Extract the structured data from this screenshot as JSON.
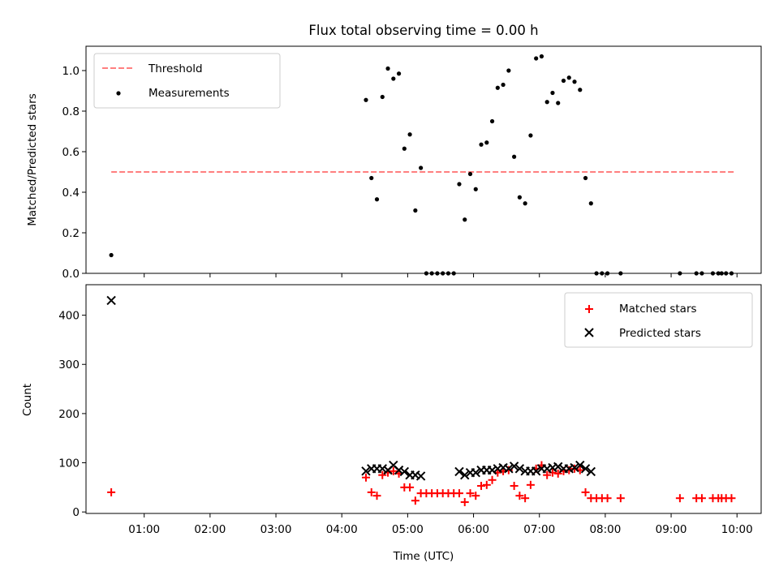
{
  "chart_data": [
    {
      "type": "scatter",
      "title": "Flux total observing time = 0.00 h",
      "ylabel": "Matched/Predicted stars",
      "xlabel": "",
      "xlim": [
        "00:07",
        "10:22"
      ],
      "ylim": [
        0,
        1.12
      ],
      "yticks": [
        0.0,
        0.2,
        0.4,
        0.6,
        0.8,
        1.0
      ],
      "ytick_labels": [
        "0.0",
        "0.2",
        "0.4",
        "0.6",
        "0.8",
        "1.0"
      ],
      "legend_position": "top-left",
      "grid": false,
      "threshold": {
        "name": "Threshold",
        "value": 0.5,
        "x_range": [
          "00:30",
          "09:58"
        ],
        "color": "#ff7f7f",
        "style": "dashed"
      },
      "series": [
        {
          "name": "Measurements",
          "color": "#000000",
          "marker": "dot",
          "points": [
            [
              "00:30",
              0.09
            ],
            [
              "04:22",
              0.855
            ],
            [
              "04:27",
              0.47
            ],
            [
              "04:32",
              0.365
            ],
            [
              "04:37",
              0.87
            ],
            [
              "04:42",
              1.01
            ],
            [
              "04:47",
              0.96
            ],
            [
              "04:52",
              0.985
            ],
            [
              "04:57",
              0.615
            ],
            [
              "05:02",
              0.685
            ],
            [
              "05:07",
              0.31
            ],
            [
              "05:12",
              0.52
            ],
            [
              "05:17",
              0.0
            ],
            [
              "05:22",
              0.0
            ],
            [
              "05:27",
              0.0
            ],
            [
              "05:32",
              0.0
            ],
            [
              "05:37",
              0.0
            ],
            [
              "05:42",
              0.0
            ],
            [
              "05:47",
              0.44
            ],
            [
              "05:52",
              0.265
            ],
            [
              "05:57",
              0.49
            ],
            [
              "06:02",
              0.415
            ],
            [
              "06:07",
              0.635
            ],
            [
              "06:12",
              0.645
            ],
            [
              "06:17",
              0.75
            ],
            [
              "06:22",
              0.915
            ],
            [
              "06:27",
              0.93
            ],
            [
              "06:32",
              1.0
            ],
            [
              "06:37",
              0.575
            ],
            [
              "06:42",
              0.375
            ],
            [
              "06:47",
              0.345
            ],
            [
              "06:52",
              0.68
            ],
            [
              "06:57",
              1.06
            ],
            [
              "07:02",
              1.07
            ],
            [
              "07:07",
              0.845
            ],
            [
              "07:12",
              0.89
            ],
            [
              "07:17",
              0.84
            ],
            [
              "07:22",
              0.95
            ],
            [
              "07:27",
              0.965
            ],
            [
              "07:32",
              0.945
            ],
            [
              "07:37",
              0.905
            ],
            [
              "07:42",
              0.47
            ],
            [
              "07:47",
              0.345
            ],
            [
              "07:52",
              0.0
            ],
            [
              "07:57",
              0.0
            ],
            [
              "08:02",
              0.0
            ],
            [
              "08:14",
              0.0
            ],
            [
              "09:08",
              0.0
            ],
            [
              "09:23",
              0.0
            ],
            [
              "09:28",
              0.0
            ],
            [
              "09:38",
              0.0
            ],
            [
              "09:43",
              0.0
            ],
            [
              "09:46",
              0.0
            ],
            [
              "09:50",
              0.0
            ],
            [
              "09:55",
              0.0
            ]
          ]
        }
      ]
    },
    {
      "type": "scatter",
      "title": "",
      "ylabel": "Count",
      "xlabel": "Time (UTC)",
      "xlim": [
        "00:07",
        "10:22"
      ],
      "ylim": [
        -3,
        462
      ],
      "yticks": [
        0,
        100,
        200,
        300,
        400
      ],
      "ytick_labels": [
        "0",
        "100",
        "200",
        "300",
        "400"
      ],
      "xticks": [
        "01:00",
        "02:00",
        "03:00",
        "04:00",
        "05:00",
        "06:00",
        "07:00",
        "08:00",
        "09:00",
        "10:00"
      ],
      "xtick_labels": [
        "01:00",
        "02:00",
        "03:00",
        "04:00",
        "05:00",
        "06:00",
        "07:00",
        "08:00",
        "09:00",
        "10:00"
      ],
      "legend_position": "top-right",
      "grid": false,
      "series": [
        {
          "name": "Matched stars",
          "color": "#ff0000",
          "marker": "plus",
          "points": [
            [
              "00:30",
              40
            ],
            [
              "04:22",
              70
            ],
            [
              "04:27",
              40
            ],
            [
              "04:32",
              33
            ],
            [
              "04:37",
              75
            ],
            [
              "04:42",
              80
            ],
            [
              "04:47",
              83
            ],
            [
              "04:52",
              78
            ],
            [
              "04:57",
              50
            ],
            [
              "05:02",
              50
            ],
            [
              "05:07",
              23
            ],
            [
              "05:12",
              38
            ],
            [
              "05:17",
              38
            ],
            [
              "05:22",
              38
            ],
            [
              "05:27",
              38
            ],
            [
              "05:32",
              38
            ],
            [
              "05:37",
              38
            ],
            [
              "05:42",
              38
            ],
            [
              "05:47",
              38
            ],
            [
              "05:52",
              20
            ],
            [
              "05:57",
              38
            ],
            [
              "06:02",
              33
            ],
            [
              "06:07",
              53
            ],
            [
              "06:12",
              55
            ],
            [
              "06:17",
              65
            ],
            [
              "06:22",
              80
            ],
            [
              "06:27",
              83
            ],
            [
              "06:32",
              85
            ],
            [
              "06:37",
              53
            ],
            [
              "06:42",
              33
            ],
            [
              "06:47",
              28
            ],
            [
              "06:52",
              55
            ],
            [
              "06:57",
              88
            ],
            [
              "07:02",
              95
            ],
            [
              "07:07",
              75
            ],
            [
              "07:12",
              80
            ],
            [
              "07:17",
              78
            ],
            [
              "07:22",
              83
            ],
            [
              "07:27",
              85
            ],
            [
              "07:32",
              88
            ],
            [
              "07:37",
              85
            ],
            [
              "07:42",
              40
            ],
            [
              "07:47",
              28
            ],
            [
              "07:52",
              28
            ],
            [
              "07:57",
              28
            ],
            [
              "08:02",
              28
            ],
            [
              "08:14",
              28
            ],
            [
              "09:08",
              28
            ],
            [
              "09:23",
              28
            ],
            [
              "09:28",
              28
            ],
            [
              "09:38",
              28
            ],
            [
              "09:43",
              28
            ],
            [
              "09:46",
              28
            ],
            [
              "09:50",
              28
            ],
            [
              "09:55",
              28
            ]
          ]
        },
        {
          "name": "Predicted stars",
          "color": "#000000",
          "marker": "x",
          "points": [
            [
              "00:30",
              430
            ],
            [
              "04:22",
              83
            ],
            [
              "04:27",
              88
            ],
            [
              "04:32",
              88
            ],
            [
              "04:37",
              88
            ],
            [
              "04:42",
              85
            ],
            [
              "04:47",
              95
            ],
            [
              "04:52",
              85
            ],
            [
              "04:57",
              82
            ],
            [
              "05:02",
              75
            ],
            [
              "05:07",
              75
            ],
            [
              "05:12",
              73
            ],
            [
              "05:47",
              82
            ],
            [
              "05:52",
              75
            ],
            [
              "05:57",
              80
            ],
            [
              "06:02",
              80
            ],
            [
              "06:07",
              85
            ],
            [
              "06:12",
              85
            ],
            [
              "06:17",
              85
            ],
            [
              "06:22",
              88
            ],
            [
              "06:27",
              90
            ],
            [
              "06:32",
              88
            ],
            [
              "06:37",
              93
            ],
            [
              "06:42",
              88
            ],
            [
              "06:47",
              83
            ],
            [
              "06:52",
              83
            ],
            [
              "06:57",
              83
            ],
            [
              "07:02",
              88
            ],
            [
              "07:07",
              88
            ],
            [
              "07:12",
              90
            ],
            [
              "07:17",
              92
            ],
            [
              "07:22",
              88
            ],
            [
              "07:27",
              88
            ],
            [
              "07:32",
              90
            ],
            [
              "07:37",
              95
            ],
            [
              "07:42",
              88
            ],
            [
              "07:47",
              82
            ]
          ]
        }
      ]
    }
  ]
}
